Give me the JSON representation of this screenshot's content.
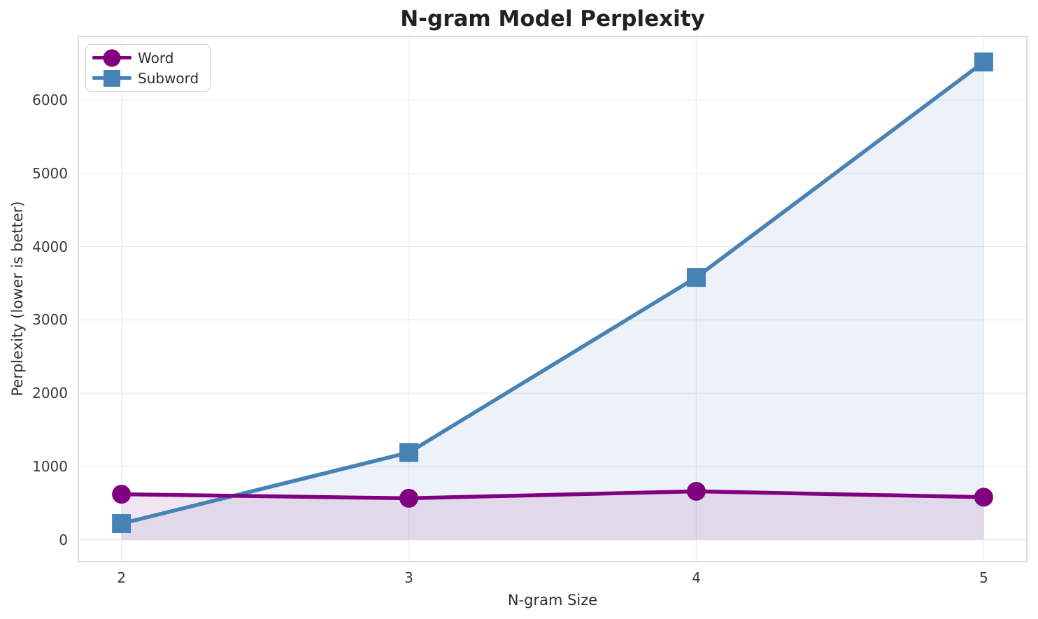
{
  "chart_data": {
    "type": "line",
    "title": "N-gram Model Perplexity",
    "xlabel": "N-gram Size",
    "ylabel": "Perplexity (lower is better)",
    "x": [
      2,
      3,
      4,
      5
    ],
    "series": [
      {
        "name": "Word",
        "color": "#800080",
        "marker": "circle",
        "values": [
          620,
          565,
          660,
          580
        ]
      },
      {
        "name": "Subword",
        "color": "#4682b4",
        "marker": "square",
        "values": [
          220,
          1190,
          3580,
          6520
        ]
      }
    ],
    "fill_to_zero": true,
    "fill_opacity": 0.1,
    "xticks": [
      "2",
      "3",
      "4",
      "5"
    ],
    "xtick_values": [
      2,
      3,
      4,
      5
    ],
    "yticks": [
      "0",
      "1000",
      "2000",
      "3000",
      "4000",
      "5000",
      "6000"
    ],
    "ytick_values": [
      0,
      1000,
      2000,
      3000,
      4000,
      5000,
      6000
    ],
    "xlim": [
      1.85,
      5.15
    ],
    "ylim": [
      -300,
      6870
    ],
    "grid": true,
    "legend_position": "upper-left",
    "colors": {
      "grid": "#ececec",
      "spine": "#d3d3d3",
      "tick_text": "#3a3a3a",
      "title_text": "#222222"
    }
  }
}
